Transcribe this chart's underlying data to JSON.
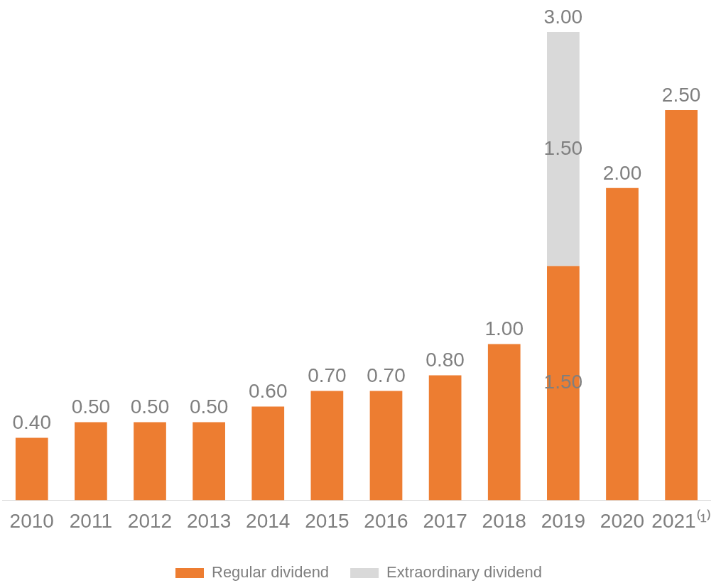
{
  "chart_data": {
    "type": "bar",
    "stacked": true,
    "categories": [
      "2010",
      "2011",
      "2012",
      "2013",
      "2014",
      "2015",
      "2016",
      "2017",
      "2018",
      "2019",
      "2020",
      "2021⁽¹⁾"
    ],
    "series": [
      {
        "name": "Regular dividend",
        "color": "#ed7d31",
        "values": [
          0.4,
          0.5,
          0.5,
          0.5,
          0.6,
          0.7,
          0.7,
          0.8,
          1.0,
          1.5,
          2.0,
          2.5
        ],
        "value_labels": [
          "0.40",
          "0.50",
          "0.50",
          "0.50",
          "0.60",
          "0.70",
          "0.70",
          "0.80",
          "1.00",
          "1.50",
          "2.00",
          "2.50"
        ]
      },
      {
        "name": "Extraordinary dividend",
        "color": "#d9d9d9",
        "values": [
          null,
          null,
          null,
          null,
          null,
          null,
          null,
          null,
          null,
          1.5,
          null,
          null
        ],
        "value_labels": [
          null,
          null,
          null,
          null,
          null,
          null,
          null,
          null,
          null,
          "1.50",
          null,
          null
        ]
      }
    ],
    "totals": [
      null,
      null,
      null,
      null,
      null,
      null,
      null,
      null,
      null,
      "3.00",
      null,
      null
    ],
    "grid": false,
    "legend": "bottom"
  }
}
